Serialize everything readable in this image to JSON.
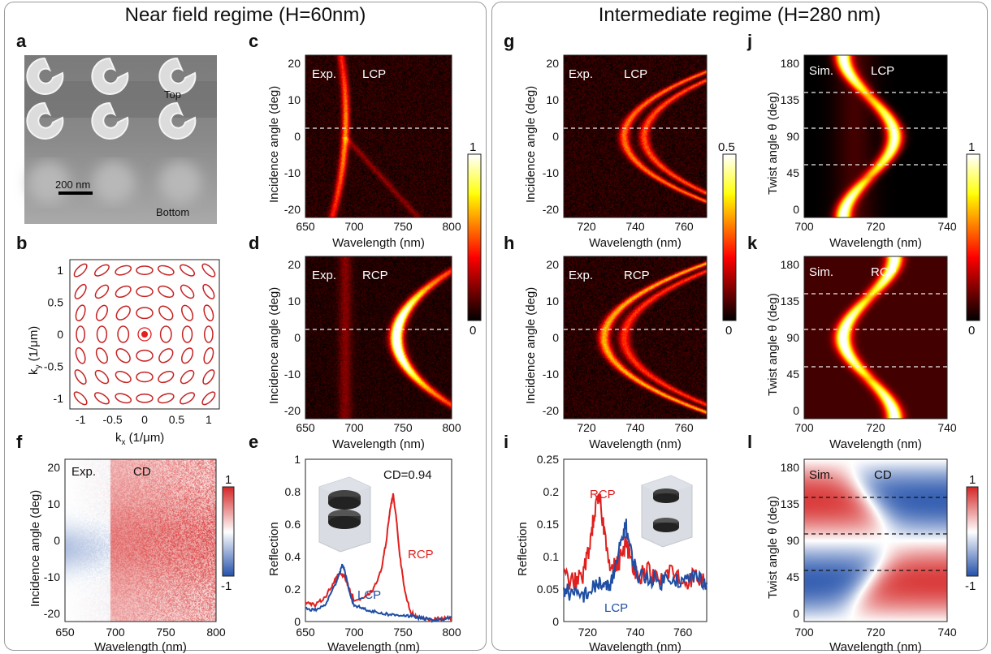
{
  "regimes": {
    "left": "Near field regime (H=60nm)",
    "right": "Intermediate regime (H=280 nm)"
  },
  "panel_letters": [
    "a",
    "b",
    "c",
    "d",
    "e",
    "f",
    "g",
    "h",
    "i",
    "j",
    "k",
    "l"
  ],
  "sem": {
    "top": "Top",
    "bottom": "Bottom",
    "scale": "200 nm"
  },
  "ellipse_plot": {
    "xlabel_main": "k",
    "xlabel_sub": "x",
    "xlabel_unit": " (1/μm)",
    "ylabel_main": "k",
    "ylabel_sub": "y",
    "ylabel_unit": " (1/μm)",
    "ticks": [
      "-1",
      "-0.5",
      "0",
      "0.5",
      "1"
    ]
  },
  "maps": {
    "c": {
      "tag": "Exp.",
      "pol": "LCP"
    },
    "d": {
      "tag": "Exp.",
      "pol": "RCP"
    },
    "f": {
      "tag": "Exp.",
      "pol": "CD"
    },
    "g": {
      "tag": "Exp.",
      "pol": "LCP"
    },
    "h": {
      "tag": "Exp.",
      "pol": "RCP"
    },
    "j": {
      "tag": "Sim.",
      "pol": "LCP"
    },
    "k": {
      "tag": "Sim.",
      "pol": "RCP"
    },
    "l": {
      "tag": "Sim.",
      "pol": "CD"
    }
  },
  "axes": {
    "incidence": "Incidence angle (deg)",
    "twist": "Twist angle θ (deg)",
    "wavelength": "Wavelength (nm)",
    "reflection": "Reflection",
    "angle_ticks": [
      "20",
      "10",
      "0",
      "-10",
      "-20"
    ],
    "twist_ticks": [
      "180",
      "135",
      "90",
      "45",
      "0"
    ],
    "wl_left": [
      "650",
      "700",
      "750",
      "800"
    ],
    "wl_mid": [
      "720",
      "740",
      "760"
    ],
    "wl_right": [
      "700",
      "720",
      "740"
    ]
  },
  "colorbars": {
    "cd_left": [
      "1",
      "-1"
    ],
    "heat_cd": [
      "1",
      "0"
    ],
    "heat_gh": [
      "0.5",
      "0"
    ],
    "heat_jk": [
      "1",
      "0"
    ],
    "cd_right": [
      "1",
      "-1"
    ]
  },
  "chart_data": [
    {
      "type": "line",
      "panel": "e",
      "xlabel": "Wavelength (nm)",
      "ylabel": "Reflection",
      "xlim": [
        650,
        800
      ],
      "ylim": [
        0,
        1
      ],
      "xticks": [
        "650",
        "700",
        "750",
        "800"
      ],
      "yticks": [
        "0",
        "0.2",
        "0.4",
        "0.6",
        "0.8",
        "1"
      ],
      "annotation": "CD=0.94",
      "series": [
        {
          "name": "RCP",
          "color": "#e0201e",
          "x": [
            650,
            660,
            670,
            680,
            685,
            690,
            695,
            700,
            710,
            720,
            728,
            733,
            737,
            740,
            743,
            747,
            752,
            758,
            765,
            780,
            790,
            800
          ],
          "y": [
            0.12,
            0.1,
            0.15,
            0.25,
            0.3,
            0.28,
            0.2,
            0.13,
            0.14,
            0.2,
            0.32,
            0.5,
            0.7,
            0.78,
            0.65,
            0.4,
            0.18,
            0.06,
            0.02,
            0.01,
            0.02,
            0.02
          ]
        },
        {
          "name": "LCP",
          "color": "#1f4ea3",
          "x": [
            650,
            660,
            670,
            680,
            685,
            688,
            690,
            695,
            700,
            710,
            720,
            730,
            740,
            750,
            760,
            770,
            780,
            790,
            800
          ],
          "y": [
            0.08,
            0.07,
            0.1,
            0.22,
            0.3,
            0.35,
            0.32,
            0.18,
            0.1,
            0.08,
            0.06,
            0.05,
            0.04,
            0.04,
            0.03,
            0.02,
            0.01,
            0.01,
            0.03
          ]
        }
      ]
    },
    {
      "type": "line",
      "panel": "i",
      "xlabel": "Wavelength (nm)",
      "ylabel": "Reflection",
      "xlim": [
        710,
        770
      ],
      "ylim": [
        0,
        0.25
      ],
      "xticks": [
        "720",
        "740",
        "760"
      ],
      "yticks": [
        "0",
        "0.05",
        "0.1",
        "0.15",
        "0.2",
        "0.25"
      ],
      "series": [
        {
          "name": "RCP",
          "color": "#e0201e",
          "x": [
            710,
            714,
            718,
            721,
            723,
            725,
            727,
            730,
            733,
            736,
            738,
            741,
            745,
            750,
            755,
            760,
            765,
            770
          ],
          "y": [
            0.07,
            0.06,
            0.07,
            0.12,
            0.17,
            0.19,
            0.14,
            0.08,
            0.09,
            0.12,
            0.1,
            0.07,
            0.08,
            0.06,
            0.08,
            0.06,
            0.07,
            0.06
          ],
          "noise": 0.015
        },
        {
          "name": "LCP",
          "color": "#1f4ea3",
          "x": [
            710,
            714,
            718,
            722,
            725,
            728,
            731,
            734,
            736,
            738,
            741,
            745,
            750,
            755,
            760,
            765,
            770
          ],
          "y": [
            0.05,
            0.04,
            0.04,
            0.05,
            0.06,
            0.05,
            0.07,
            0.12,
            0.15,
            0.11,
            0.07,
            0.07,
            0.06,
            0.07,
            0.06,
            0.07,
            0.06
          ],
          "noise": 0.013
        }
      ]
    }
  ]
}
